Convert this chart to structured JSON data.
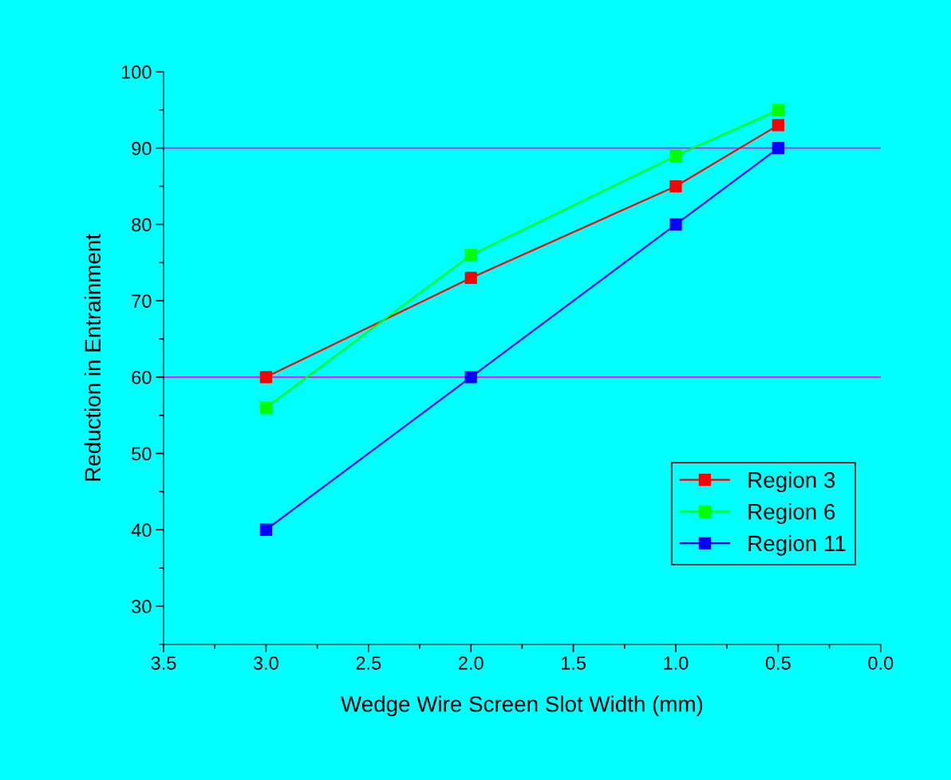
{
  "chart_data": {
    "type": "line",
    "xlabel": "Wedge Wire Screen Slot Width (mm)",
    "ylabel": "Reduction in Entrainment",
    "x": [
      3.0,
      2.0,
      1.0,
      0.5
    ],
    "series": [
      {
        "name": "Region 3",
        "color": "#ff0000",
        "values": [
          60,
          73,
          85,
          93
        ]
      },
      {
        "name": "Region 6",
        "color": "#00ff00",
        "values": [
          56,
          76,
          89,
          95
        ]
      },
      {
        "name": "Region 11",
        "color": "#0000ff",
        "values": [
          40,
          60,
          80,
          90
        ]
      }
    ],
    "xlim": [
      3.5,
      0.0
    ],
    "xticks": [
      {
        "value": 3.5,
        "label": "3.5"
      },
      {
        "value": 3.0,
        "label": "3.0"
      },
      {
        "value": 2.5,
        "label": "2.5"
      },
      {
        "value": 2.0,
        "label": "2.0"
      },
      {
        "value": 1.5,
        "label": "1.5"
      },
      {
        "value": 1.0,
        "label": "1.0"
      },
      {
        "value": 0.5,
        "label": "0.5"
      },
      {
        "value": 0.0,
        "label": "0.0"
      }
    ],
    "ylim": [
      25,
      100
    ],
    "yticks": [
      30,
      40,
      50,
      60,
      70,
      80,
      90,
      100
    ],
    "ref_lines": [
      {
        "axis": "y",
        "value": 90,
        "color": "#ff00ff"
      },
      {
        "axis": "y",
        "value": 60,
        "color": "#ff00ff"
      }
    ],
    "marker": "square",
    "line_style": "solid",
    "legend": "bottom right",
    "grid": false
  }
}
